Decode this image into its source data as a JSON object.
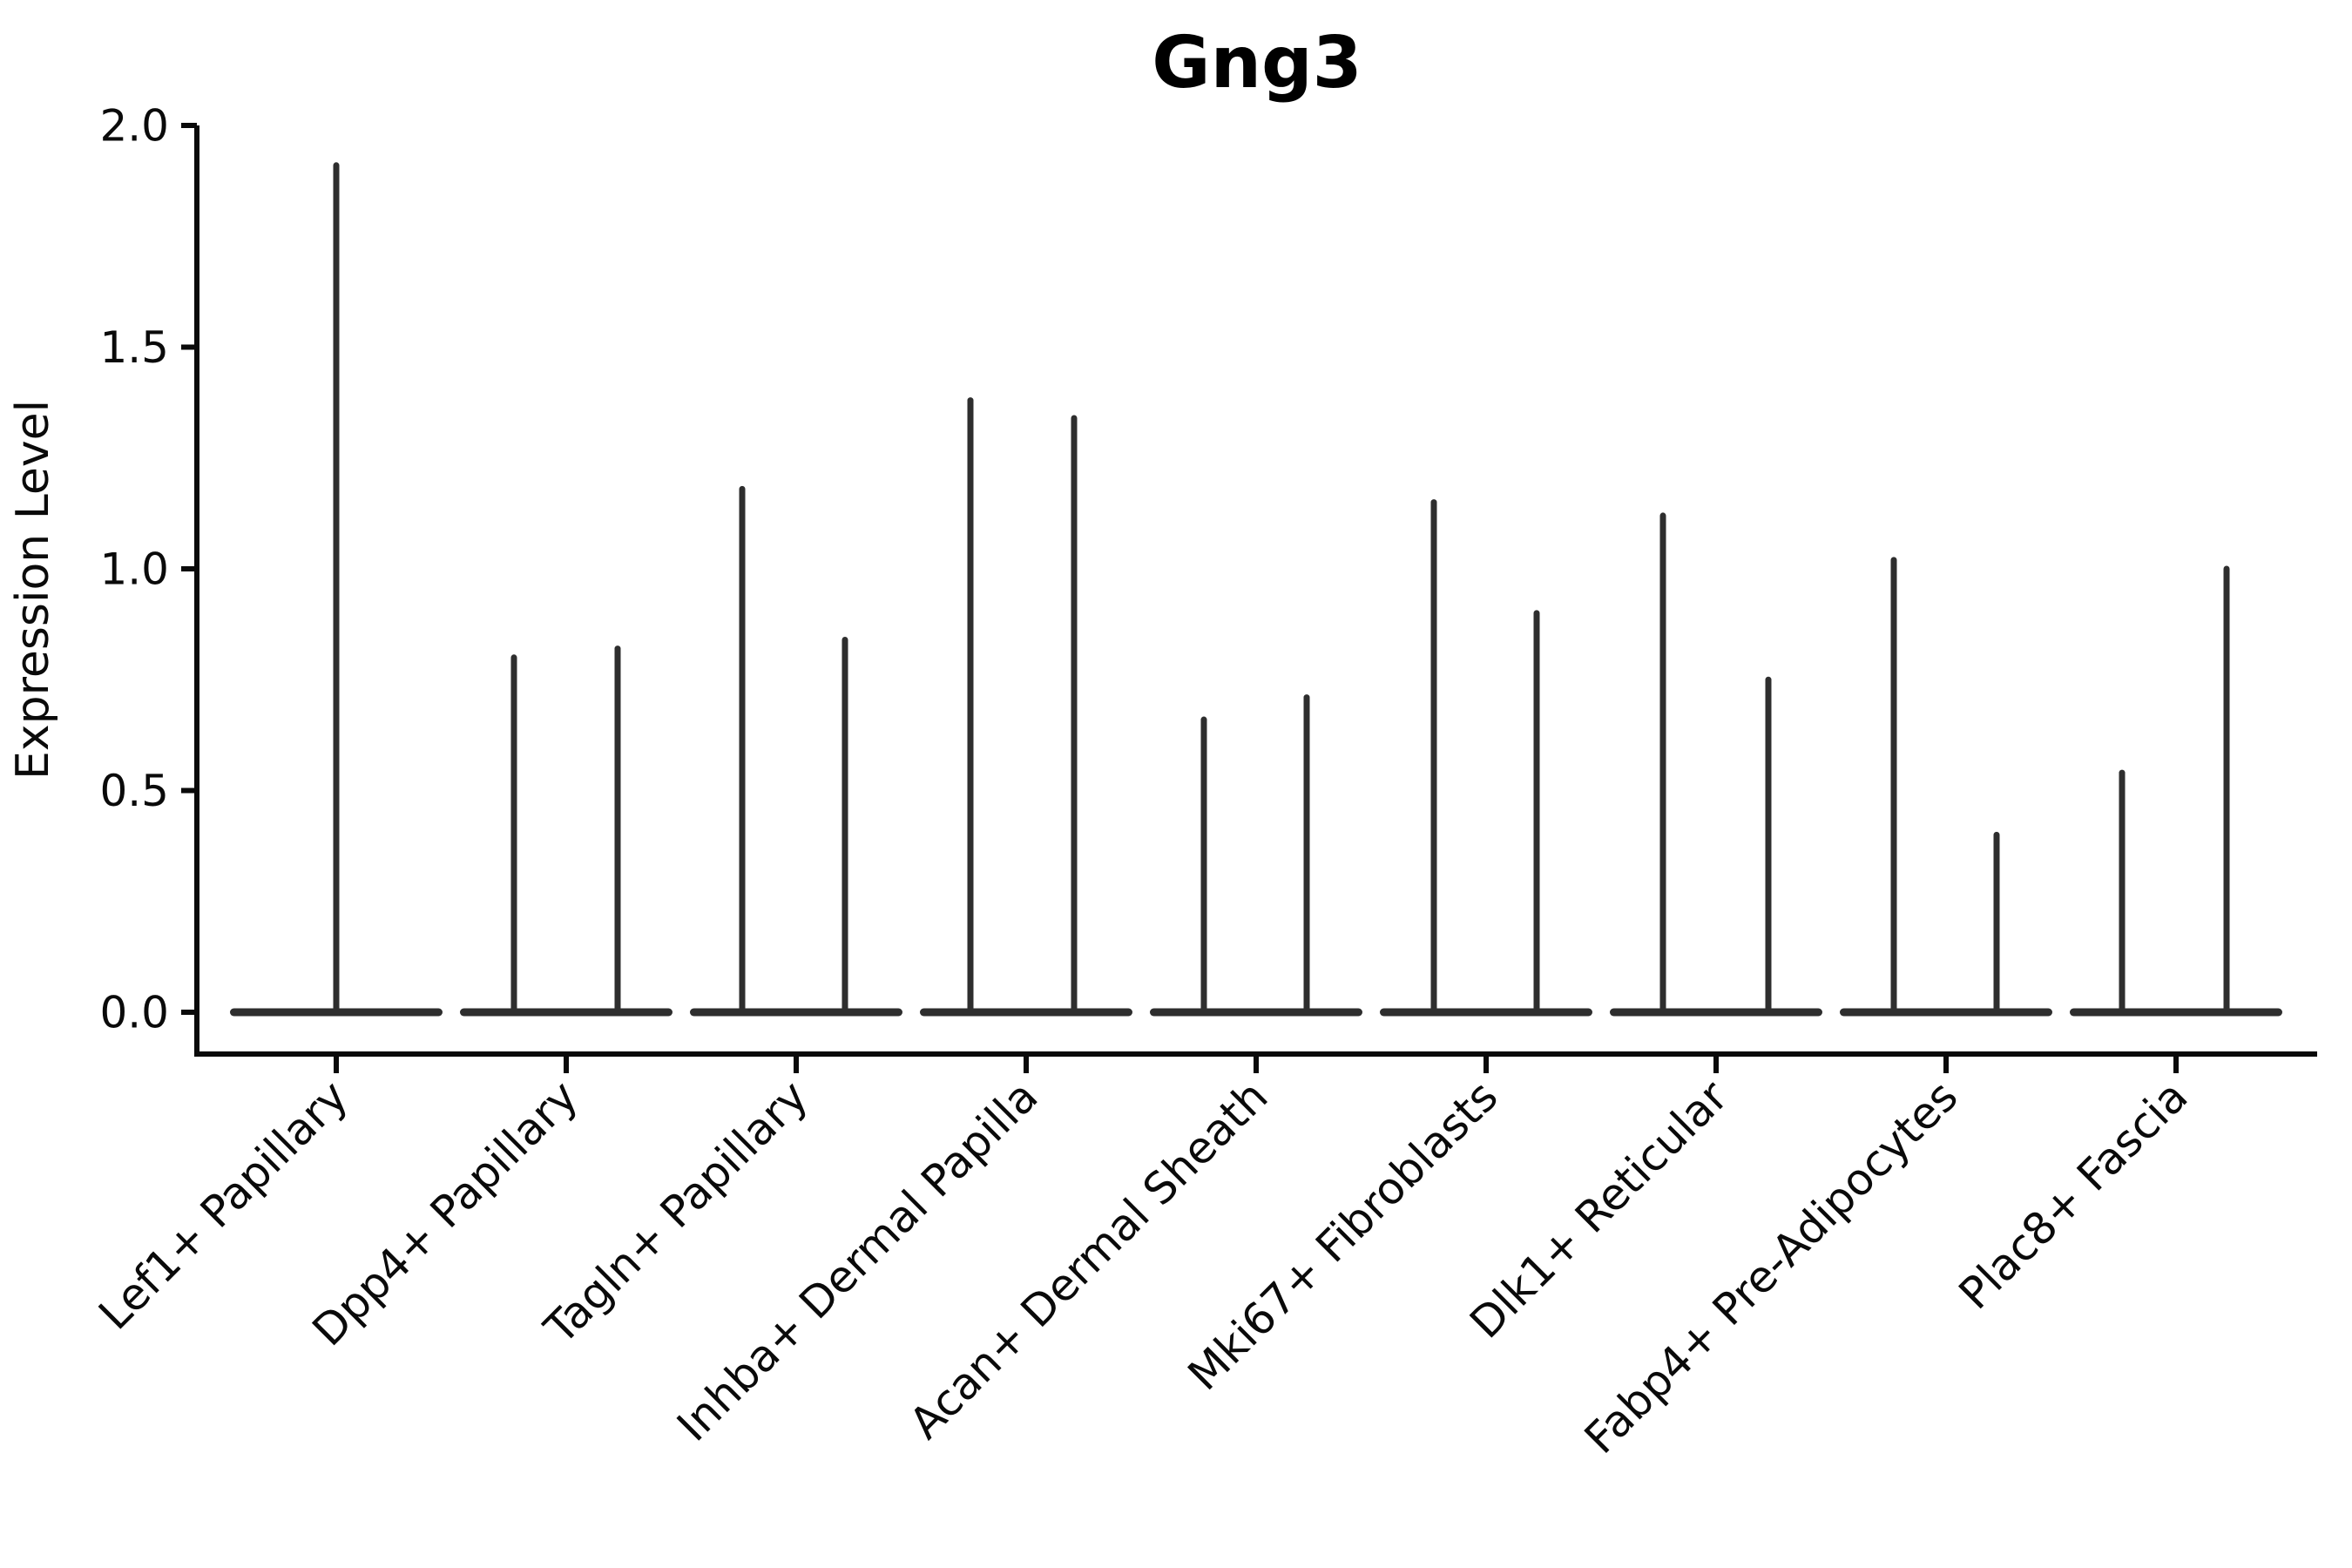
{
  "chart_data": {
    "type": "violin",
    "title": "Gng3",
    "ylabel": "Expression Level",
    "xlabel": "",
    "ylim": [
      0.0,
      2.0
    ],
    "y_ticks": [
      0.0,
      0.5,
      1.0,
      1.5,
      2.0
    ],
    "y_tick_labels": [
      "0.0",
      "0.5",
      "1.0",
      "1.5",
      "2.0"
    ],
    "grid": false,
    "legend": "none",
    "x_tick_rotation": 45,
    "description": "Violin plot of Gng3 expression per fibroblast cluster; each violin is collapsed flat at 0 with thin density spikes reaching the maximum expression values listed.",
    "categories": [
      "Lef1+ Papillary",
      "Dpp4+ Papillary",
      "Tagln+ Papillary",
      "Inhba+ Dermal Papilla",
      "Acan+ Dermal Sheath",
      "Mki67+ Fibroblasts",
      "Dlk1+ Reticular",
      "Fabp4+ Pre-Adipocytes",
      "Plac8+ Fascia"
    ],
    "violins": [
      {
        "category": "Lef1+ Papillary",
        "spikes": [
          {
            "dx": 0,
            "max": 1.91
          }
        ]
      },
      {
        "category": "Dpp4+ Papillary",
        "spikes": [
          {
            "dx": -60,
            "max": 0.8
          },
          {
            "dx": 59,
            "max": 0.82
          }
        ]
      },
      {
        "category": "Tagln+ Papillary",
        "spikes": [
          {
            "dx": -62,
            "max": 1.18
          },
          {
            "dx": 56,
            "max": 0.84
          }
        ]
      },
      {
        "category": "Inhba+ Dermal Papilla",
        "spikes": [
          {
            "dx": -64,
            "max": 1.38
          },
          {
            "dx": 55,
            "max": 1.34
          }
        ]
      },
      {
        "category": "Acan+ Dermal Sheath",
        "spikes": [
          {
            "dx": -60,
            "max": 0.66
          },
          {
            "dx": 58,
            "max": 0.71
          }
        ]
      },
      {
        "category": "Mki67+ Fibroblasts",
        "spikes": [
          {
            "dx": -60,
            "max": 1.15
          },
          {
            "dx": 58,
            "max": 0.9
          }
        ]
      },
      {
        "category": "Dlk1+ Reticular",
        "spikes": [
          {
            "dx": -61,
            "max": 1.12
          },
          {
            "dx": 60,
            "max": 0.75
          }
        ]
      },
      {
        "category": "Fabp4+ Pre-Adipocytes",
        "spikes": [
          {
            "dx": -60,
            "max": 1.02
          },
          {
            "dx": 58,
            "max": 0.4
          }
        ]
      },
      {
        "category": "Plac8+ Fascia",
        "spikes": [
          {
            "dx": -62,
            "max": 0.54
          },
          {
            "dx": 58,
            "max": 1.0
          }
        ]
      }
    ]
  },
  "colors": {
    "ink": "#0a0a0a",
    "violin": "#2e2e2e",
    "background": "#ffffff"
  }
}
